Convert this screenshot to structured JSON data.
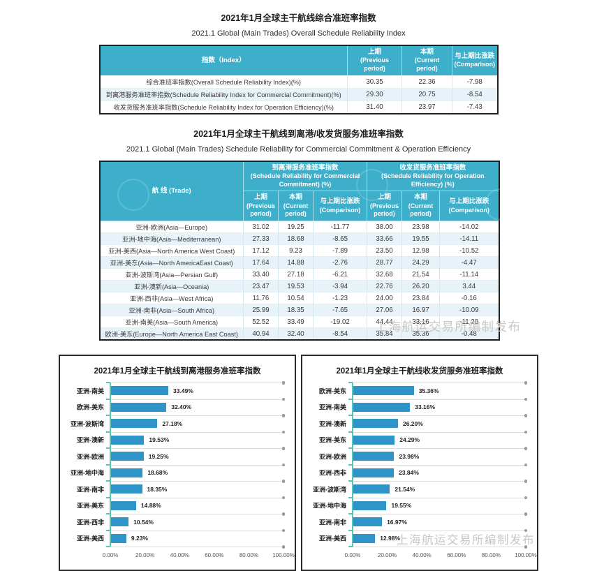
{
  "document": {
    "watermark": "上海航运交易所编制发布",
    "section1": {
      "title_zh": "2021年1月全球主干航线综合准班率指数",
      "title_en": "2021.1 Global (Main Trades) Overall Schedule Reliability Index",
      "table": {
        "headers": [
          {
            "zh": "指数（Index）",
            "en": ""
          },
          {
            "zh": "上期",
            "en": "(Previous period)"
          },
          {
            "zh": "本期",
            "en": "(Current period)"
          },
          {
            "zh": "与上期比涨跌",
            "en": "(Comparison)"
          }
        ],
        "rows": [
          {
            "label": "综合准班率指数(Overall Schedule Reliability Index)(%)",
            "previous": "30.35",
            "current": "22.36",
            "change": "-7.98"
          },
          {
            "label": "到离港服务准班率指数(Schedule Reliability Index for Commercial Commitment)(%)",
            "previous": "29.30",
            "current": "20.75",
            "change": "-8.54"
          },
          {
            "label": "收发货服务准班率指数(Schedule Reliability Index for Operation Efficiency)(%)",
            "previous": "31.40",
            "current": "23.97",
            "change": "-7.43"
          }
        ]
      }
    },
    "section2": {
      "title_zh": "2021年1月全球主干航线到离港/收发货服务准班率指数",
      "title_en": "2021.1 Global (Main Trades) Schedule Reliability for Commercial Commitment & Operation Efficiency",
      "table": {
        "trade_header": "航 线 (Trade)",
        "group1_zh": "到离港服务准班率指数",
        "group1_en": "(Schedule Reliability for Commercial Commitment) (%)",
        "group2_zh": "收发货服务准班率指数",
        "group2_en": "(Schedule Reliability for Operation Efficiency) (%)",
        "sub_headers": [
          {
            "zh": "上期",
            "en": "(Previous period)"
          },
          {
            "zh": "本期",
            "en": "(Current period)"
          },
          {
            "zh": "与上期比涨跌",
            "en": "(Comparison)"
          },
          {
            "zh": "上期",
            "en": "(Previous period)"
          },
          {
            "zh": "本期",
            "en": "(Current period)"
          },
          {
            "zh": "与上期比涨跌",
            "en": "(Comparison)"
          }
        ],
        "rows": [
          {
            "trade": "亚洲-欧洲(Asia—Europe)",
            "cc_prev": "31.02",
            "cc_curr": "19.25",
            "cc_change": "-11.77",
            "oe_prev": "38.00",
            "oe_curr": "23.98",
            "oe_change": "-14.02"
          },
          {
            "trade": "亚洲-地中海(Asia—Mediterranean)",
            "cc_prev": "27.33",
            "cc_curr": "18.68",
            "cc_change": "-8.65",
            "oe_prev": "33.66",
            "oe_curr": "19.55",
            "oe_change": "-14.11"
          },
          {
            "trade": "亚洲-美西(Asia—North America West Coast)",
            "cc_prev": "17.12",
            "cc_curr": "9.23",
            "cc_change": "-7.89",
            "oe_prev": "23.50",
            "oe_curr": "12.98",
            "oe_change": "-10.52"
          },
          {
            "trade": "亚洲-美东(Asia—North AmericaEast Coast)",
            "cc_prev": "17.64",
            "cc_curr": "14.88",
            "cc_change": "-2.76",
            "oe_prev": "28.77",
            "oe_curr": "24.29",
            "oe_change": "-4.47"
          },
          {
            "trade": "亚洲-波斯湾(Asia—Persian Gulf)",
            "cc_prev": "33.40",
            "cc_curr": "27.18",
            "cc_change": "-6.21",
            "oe_prev": "32.68",
            "oe_curr": "21.54",
            "oe_change": "-11.14"
          },
          {
            "trade": "亚洲-澳新(Asia—Oceania)",
            "cc_prev": "23.47",
            "cc_curr": "19.53",
            "cc_change": "-3.94",
            "oe_prev": "22.76",
            "oe_curr": "26.20",
            "oe_change": "3.44"
          },
          {
            "trade": "亚洲-西非(Asia—West Africa)",
            "cc_prev": "11.76",
            "cc_curr": "10.54",
            "cc_change": "-1.23",
            "oe_prev": "24.00",
            "oe_curr": "23.84",
            "oe_change": "-0.16"
          },
          {
            "trade": "亚洲-南非(Asia—South Africa)",
            "cc_prev": "25.99",
            "cc_curr": "18.35",
            "cc_change": "-7.65",
            "oe_prev": "27.06",
            "oe_curr": "16.97",
            "oe_change": "-10.09"
          },
          {
            "trade": "亚洲-南美(Asia—South America)",
            "cc_prev": "52.52",
            "cc_curr": "33.49",
            "cc_change": "-19.02",
            "oe_prev": "44.44",
            "oe_curr": "33.16",
            "oe_change": "-11.28"
          },
          {
            "trade": "欧洲-美东(Europe—North America East Coast)",
            "cc_prev": "40.94",
            "cc_curr": "32.40",
            "cc_change": "-8.54",
            "oe_prev": "35.84",
            "oe_curr": "35.36",
            "oe_change": "-0.48"
          }
        ]
      }
    },
    "colors": {
      "header_teal": "#3dafca",
      "row_alt_blue": "#e7f2f9",
      "bar_blue": "#2f94c7",
      "axis_teal": "#5bc4b2",
      "watermark_gray": "#c7c7c7"
    }
  },
  "chart_data": [
    {
      "type": "bar",
      "orientation": "horizontal",
      "title": "2021年1月全球主干航线到离港服务准班率指数",
      "categories": [
        "亚洲-南美",
        "欧洲-美东",
        "亚洲-波斯湾",
        "亚洲-澳新",
        "亚洲-欧洲",
        "亚洲-地中海",
        "亚洲-南非",
        "亚洲-美东",
        "亚洲-西非",
        "亚洲-美西"
      ],
      "values": [
        33.49,
        32.4,
        27.18,
        19.53,
        19.25,
        18.68,
        18.35,
        14.88,
        10.54,
        9.23
      ],
      "value_labels": [
        "33.49%",
        "32.40%",
        "27.18%",
        "19.53%",
        "19.25%",
        "18.68%",
        "18.35%",
        "14.88%",
        "10.54%",
        "9.23%"
      ],
      "xlim": [
        0,
        100
      ],
      "x_tick_labels": [
        "0.00%",
        "20.00%",
        "40.00%",
        "60.00%",
        "80.00%",
        "100.00%"
      ],
      "grid": true,
      "legend": "none",
      "bar_color": "#2f94c7"
    },
    {
      "type": "bar",
      "orientation": "horizontal",
      "title": "2021年1月全球主干航线收发货服务准班率指数",
      "categories": [
        "欧洲-美东",
        "亚洲-南美",
        "亚洲-澳新",
        "亚洲-美东",
        "亚洲-欧洲",
        "亚洲-西非",
        "亚洲-波斯湾",
        "亚洲-地中海",
        "亚洲-南非",
        "亚洲-美西"
      ],
      "values": [
        35.36,
        33.16,
        26.2,
        24.29,
        23.98,
        23.84,
        21.54,
        19.55,
        16.97,
        12.98
      ],
      "value_labels": [
        "35.36%",
        "33.16%",
        "26.20%",
        "24.29%",
        "23.98%",
        "23.84%",
        "21.54%",
        "19.55%",
        "16.97%",
        "12.98%"
      ],
      "xlim": [
        0,
        100
      ],
      "x_tick_labels": [
        "0.00%",
        "20.00%",
        "40.00%",
        "60.00%",
        "80.00%",
        "100.00%"
      ],
      "grid": true,
      "legend": "none",
      "bar_color": "#2f94c7"
    }
  ]
}
